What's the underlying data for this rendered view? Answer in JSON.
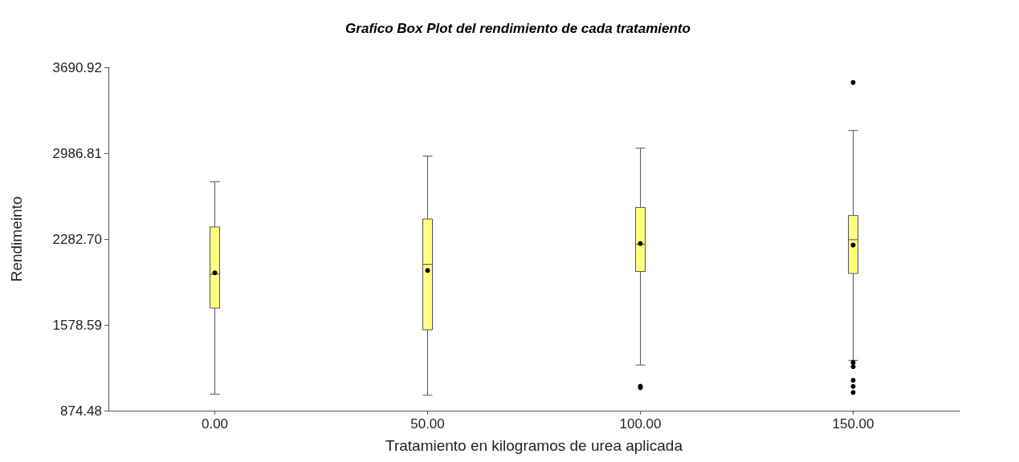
{
  "chart_data": {
    "type": "box",
    "title": "Grafico Box Plot del rendimiento de cada tratamiento",
    "xlabel": "Tratamiento en kilogramos de urea aplicada",
    "ylabel": "Rendimeinto",
    "categories": [
      "0.00",
      "50.00",
      "100.00",
      "150.00"
    ],
    "color": "#ffff80",
    "boxes": [
      {
        "low": 1010,
        "q1": 1716,
        "median": 1994,
        "q3": 2382,
        "high": 2752,
        "mean": 2005
      },
      {
        "low": 1001,
        "q1": 1538,
        "median": 2075,
        "q3": 2447,
        "high": 2963,
        "mean": 2025
      },
      {
        "low": 1249,
        "q1": 2016,
        "median": 2240,
        "q3": 2542,
        "high": 3028,
        "mean": 2246,
        "outliers": [
          1063,
          1075
        ]
      },
      {
        "low": 1287,
        "q1": 2000,
        "median": 2277,
        "q3": 2476,
        "high": 3173,
        "mean": 2233,
        "outliers": [
          3567,
          1270,
          1236,
          1124,
          1074,
          1024
        ]
      }
    ],
    "ylim": [
      874.48,
      3690.92
    ],
    "yticks": [
      874.48,
      1578.59,
      {
        "value": 2282.7,
        "label": "2282.70"
      },
      2986.81,
      3690.92
    ],
    "grid": false
  }
}
